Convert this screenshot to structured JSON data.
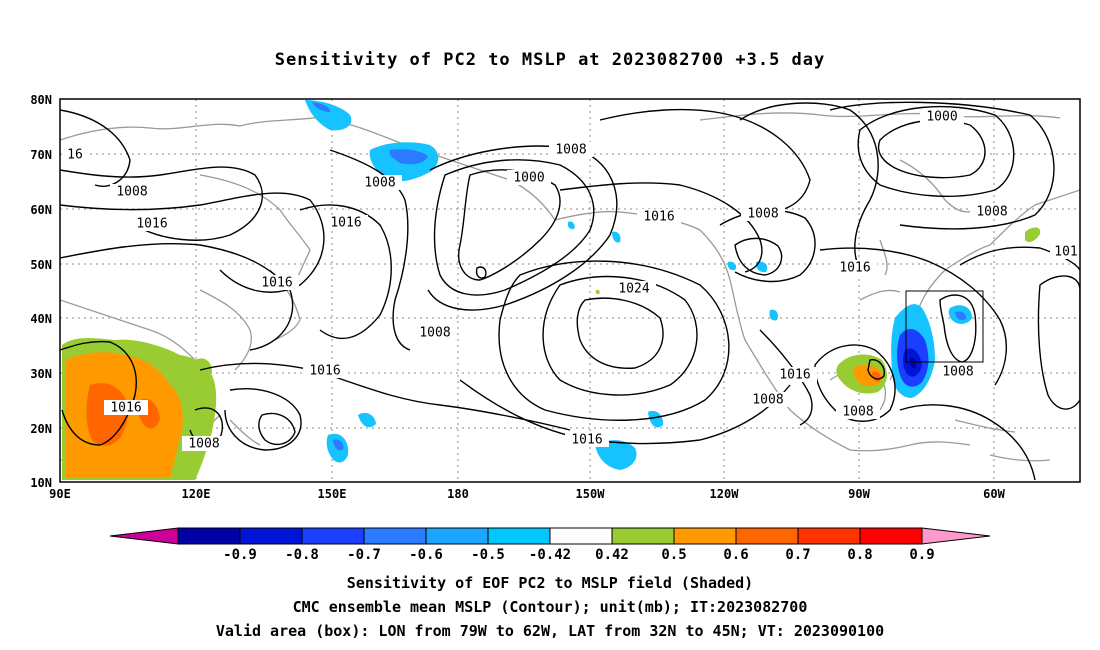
{
  "title": "Sensitivity of PC2 to MSLP at 2023082700 +3.5 day",
  "latitude_labels": [
    "80N",
    "70N",
    "60N",
    "50N",
    "40N",
    "30N",
    "20N",
    "10N"
  ],
  "longitude_labels": [
    "90E",
    "120E",
    "150E",
    "180",
    "150W",
    "120W",
    "90W",
    "60W"
  ],
  "contour_labels": [
    "16",
    "1008",
    "1008",
    "1016",
    "1016",
    "1016",
    "1016",
    "1016",
    "1008",
    "1000",
    "1008",
    "1016",
    "1024",
    "1008",
    "1016",
    "1008",
    "1016",
    "1008",
    "1000",
    "1008",
    "1008",
    "1016",
    "1008",
    "1008",
    "1016",
    "101"
  ],
  "colorbar": {
    "labels": [
      "-0.9",
      "-0.8",
      "-0.7",
      "-0.6",
      "-0.5",
      "-0.42",
      "0.42",
      "0.5",
      "0.6",
      "0.7",
      "0.8",
      "0.9"
    ],
    "colors": [
      "#cc0099",
      "#0000a8",
      "#0014d8",
      "#1a3fff",
      "#2a7bff",
      "#1aa6ff",
      "#00c8ff",
      "#ffffff",
      "#99cc33",
      "#ff9900",
      "#ff6600",
      "#ff3300",
      "#ff0000",
      "#ff99cc"
    ]
  },
  "shading_colors": {
    "light_blue": "#17c3ff",
    "mid_blue": "#2a7bff",
    "blue": "#1a3fff",
    "dark_blue": "#0014d8",
    "green": "#99cc33",
    "orange": "#ff9900",
    "dark_orange": "#ff6600"
  },
  "captions": [
    "Sensitivity of EOF PC2 to MSLP field (Shaded)",
    "CMC ensemble mean MSLP (Contour); unit(mb); IT:2023082700",
    "Valid area (box): LON from 79W to 62W, LAT from 32N to 45N; VT: 2023090100"
  ]
}
